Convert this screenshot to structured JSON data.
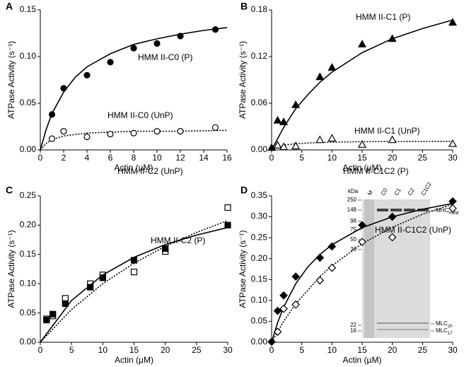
{
  "chart_data": [
    {
      "type": "scatter",
      "panel": "A",
      "y_label": "ATPase Activity (s⁻¹)",
      "x_label": "Actin (µM)",
      "xlim": [
        0,
        16
      ],
      "xticks": [
        0,
        2,
        4,
        6,
        8,
        10,
        12,
        14,
        16
      ],
      "ylim": [
        0,
        0.15
      ],
      "yticks": [
        {
          "value": 0,
          "label": "0.00"
        },
        {
          "value": 0.05,
          "label": "0.05"
        },
        {
          "value": 0.1,
          "label": "0.10"
        },
        {
          "value": 0.15,
          "label": "0.15"
        }
      ],
      "series": [
        {
          "name": "HMM II-C0 (P)",
          "marker": "circle",
          "fill": "#000000",
          "color": "#000000",
          "line_style": "solid",
          "x": [
            1,
            2,
            4,
            6,
            8,
            10,
            12,
            15
          ],
          "values": [
            0.038,
            0.066,
            0.08,
            0.094,
            0.109,
            0.114,
            0.122,
            0.129
          ],
          "fit_x": [
            0,
            0.5,
            1,
            2,
            3,
            4,
            6,
            8,
            10,
            12,
            14,
            16
          ],
          "fit_values": [
            0,
            0.022,
            0.039,
            0.062,
            0.078,
            0.089,
            0.103,
            0.113,
            0.119,
            0.124,
            0.128,
            0.131
          ]
        },
        {
          "name": "HMM II-C0 (UnP)",
          "marker": "circle",
          "fill": "#ffffff",
          "color": "#000000",
          "line_style": "dashed",
          "x": [
            1,
            2,
            4,
            6,
            8,
            10,
            12,
            15
          ],
          "values": [
            0.012,
            0.02,
            0.014,
            0.017,
            0.018,
            0.02,
            0.02,
            0.024
          ],
          "fit_x": [
            0,
            0.5,
            1,
            2,
            4,
            6,
            8,
            10,
            12,
            16
          ],
          "fit_values": [
            0,
            0.007,
            0.011,
            0.015,
            0.018,
            0.019,
            0.02,
            0.02,
            0.02,
            0.021
          ]
        }
      ]
    },
    {
      "type": "scatter",
      "panel": "B",
      "y_label": "ATPase Activity (s⁻¹)",
      "x_label": "Actin (µM)",
      "xlim": [
        0,
        30
      ],
      "xticks": [
        0,
        5,
        10,
        15,
        20,
        25,
        30
      ],
      "ylim": [
        0,
        0.18
      ],
      "yticks": [
        {
          "value": 0,
          "label": "0.00"
        },
        {
          "value": 0.06,
          "label": "0.06"
        },
        {
          "value": 0.12,
          "label": "0.12"
        },
        {
          "value": 0.18,
          "label": "0.18"
        }
      ],
      "series": [
        {
          "name": "HMM II-C1 (P)",
          "marker": "triangle",
          "fill": "#000000",
          "color": "#000000",
          "line_style": "solid",
          "x": [
            0,
            1,
            2,
            4,
            8,
            10,
            15,
            20,
            30
          ],
          "values": [
            0.003,
            0.038,
            0.036,
            0.058,
            0.094,
            0.106,
            0.136,
            0.143,
            0.164
          ],
          "fit_x": [
            0,
            2,
            4,
            6,
            8,
            10,
            15,
            20,
            25,
            30
          ],
          "fit_values": [
            0,
            0.029,
            0.053,
            0.071,
            0.087,
            0.1,
            0.125,
            0.143,
            0.156,
            0.167
          ]
        },
        {
          "name": "HMM II-C1 (UnP)",
          "marker": "triangle",
          "fill": "#ffffff",
          "color": "#000000",
          "line_style": "dashed",
          "x": [
            1,
            2,
            4,
            8,
            10,
            15,
            20,
            30
          ],
          "values": [
            0.006,
            0.004,
            0.005,
            0.013,
            0.015,
            0.007,
            0.013,
            0.008
          ],
          "fit_x": [
            0,
            1,
            2,
            4,
            8,
            15,
            30
          ],
          "fit_values": [
            0,
            0.004,
            0.006,
            0.008,
            0.0096,
            0.0106,
            0.011
          ]
        }
      ]
    },
    {
      "type": "scatter",
      "panel": "C",
      "y_label": "ATPase Activity (s⁻¹)",
      "x_label": "Actin (µM)",
      "xlim": [
        0,
        30
      ],
      "xticks": [
        0,
        5,
        10,
        15,
        20,
        25,
        30
      ],
      "ylim": [
        0,
        0.25
      ],
      "yticks": [
        {
          "value": 0,
          "label": "0.00"
        },
        {
          "value": 0.05,
          "label": "0.05"
        },
        {
          "value": 0.1,
          "label": "0.10"
        },
        {
          "value": 0.15,
          "label": "0.15"
        },
        {
          "value": 0.2,
          "label": "0.20"
        },
        {
          "value": 0.25,
          "label": "0.25"
        }
      ],
      "series": [
        {
          "name": "HMM II-C2 (UnP)",
          "marker": "square",
          "fill": "#ffffff",
          "color": "#000000",
          "line_style": "dashed",
          "x": [
            1,
            2,
            4,
            8,
            10,
            15,
            20,
            30
          ],
          "values": [
            0.04,
            0.045,
            0.075,
            0.1,
            0.115,
            0.12,
            0.155,
            0.23
          ],
          "fit_x": [
            0,
            5,
            10,
            15,
            20,
            25,
            30
          ],
          "fit_values": [
            0,
            0.056,
            0.1,
            0.135,
            0.164,
            0.1875,
            0.208
          ]
        },
        {
          "name": "HMM II-C2 (P)",
          "marker": "square",
          "fill": "#000000",
          "color": "#000000",
          "line_style": "solid",
          "x": [
            1,
            2,
            4,
            8,
            10,
            15,
            20,
            30
          ],
          "values": [
            0.038,
            0.048,
            0.066,
            0.094,
            0.11,
            0.14,
            0.16,
            0.2
          ],
          "fit_x": [
            0,
            5,
            10,
            15,
            20,
            25,
            30
          ],
          "fit_values": [
            0,
            0.0714,
            0.115,
            0.145,
            0.167,
            0.183,
            0.196
          ]
        }
      ]
    },
    {
      "type": "scatter",
      "panel": "D",
      "y_label": "ATPase Activity (s⁻¹)",
      "x_label": "Actin (µM)",
      "xlim": [
        0,
        30
      ],
      "xticks": [
        0,
        5,
        10,
        15,
        20,
        25,
        30
      ],
      "ylim": [
        0,
        0.35
      ],
      "yticks": [
        {
          "value": 0,
          "label": "0.00"
        },
        {
          "value": 0.05,
          "label": "0.05"
        },
        {
          "value": 0.1,
          "label": "0.10"
        },
        {
          "value": 0.15,
          "label": "0.15"
        },
        {
          "value": 0.2,
          "label": "0.20"
        },
        {
          "value": 0.25,
          "label": "0.25"
        },
        {
          "value": 0.3,
          "label": "0.30"
        },
        {
          "value": 0.35,
          "label": "0.35"
        }
      ],
      "series": [
        {
          "name": "HMM II-C1C2 (P)",
          "marker": "diamond",
          "fill": "#000000",
          "color": "#000000",
          "line_style": "solid",
          "x": [
            0,
            1,
            2,
            4,
            8,
            10,
            15,
            20,
            30
          ],
          "values": [
            0.001,
            0.075,
            0.112,
            0.157,
            0.202,
            0.229,
            0.28,
            0.3,
            0.337
          ],
          "fit_x": [
            0,
            1,
            2,
            4,
            6,
            8,
            10,
            15,
            20,
            25,
            30
          ],
          "fit_values": [
            0,
            0.047,
            0.084,
            0.14,
            0.18,
            0.21,
            0.233,
            0.274,
            0.3,
            0.318,
            0.332
          ]
        },
        {
          "name": "HMM II-C1C2 (UnP)",
          "marker": "diamond",
          "fill": "#ffffff",
          "color": "#000000",
          "line_style": "dashed",
          "x": [
            1,
            2,
            4,
            8,
            10,
            15,
            20,
            30
          ],
          "values": [
            0.025,
            0.08,
            0.09,
            0.148,
            0.178,
            0.24,
            0.251,
            0.32
          ],
          "fit_x": [
            0,
            2,
            4,
            8,
            10,
            15,
            20,
            25,
            30
          ],
          "fit_values": [
            0,
            0.05,
            0.092,
            0.157,
            0.183,
            0.236,
            0.275,
            0.306,
            0.33
          ]
        }
      ],
      "inset": {
        "unit": "kDa",
        "lanes": [
          "M",
          "C0",
          "C1",
          "C2",
          "C1C2"
        ],
        "markers": [
          250,
          148,
          98,
          75,
          50,
          36,
          22,
          16
        ],
        "bands": [
          {
            "main": "MHC",
            "sub": "HMM"
          },
          {
            "main": "MLC",
            "sub": "20"
          },
          {
            "main": "MLC",
            "sub": "17"
          }
        ]
      }
    }
  ]
}
